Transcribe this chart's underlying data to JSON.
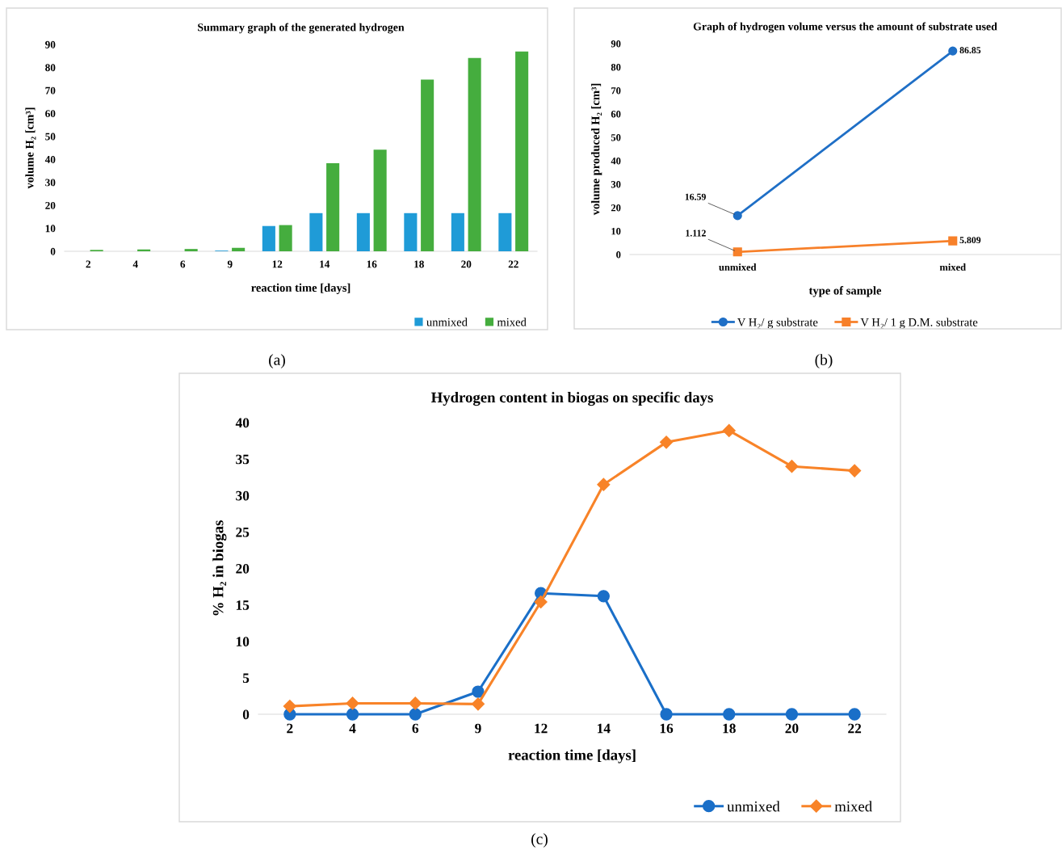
{
  "chart_data": [
    {
      "type": "bar",
      "title": "Summary graph of the generated hydrogen",
      "xlabel": "reaction time [days]",
      "ylabel": "volume H₂ [cm³]",
      "categories": [
        "2",
        "4",
        "6",
        "9",
        "12",
        "14",
        "16",
        "18",
        "20",
        "22"
      ],
      "series": [
        {
          "name": "unmixed",
          "color": "#1f9bd7",
          "values": [
            0,
            0,
            0,
            0.3,
            11,
            16.6,
            16.6,
            16.6,
            16.6,
            16.6
          ]
        },
        {
          "name": "mixed",
          "color": "#45ad3e",
          "values": [
            0.6,
            0.8,
            1.0,
            1.5,
            11.4,
            38.3,
            44.2,
            74.7,
            84.1,
            86.9
          ]
        }
      ],
      "ylim": [
        0,
        90
      ],
      "yticks": [
        0,
        10,
        20,
        30,
        40,
        50,
        60,
        70,
        80,
        90
      ],
      "grid": false,
      "legend": "bottom right",
      "annotations": [
        "(a)"
      ]
    },
    {
      "type": "line",
      "title": "Graph of hydrogen volume versus the amount of substrate used",
      "xlabel": "type of sample",
      "ylabel": "volume produced H₂ [cm³]",
      "categories": [
        "unmixed",
        "mixed"
      ],
      "series": [
        {
          "name": "V H₂/ g substrate",
          "color": "#1f6fc6",
          "marker": "circle",
          "values": [
            16.59,
            86.85
          ]
        },
        {
          "name": "V H₂/ 1 g D.M. substrate",
          "color": "#f7802a",
          "marker": "square",
          "values": [
            1.112,
            5.809
          ]
        }
      ],
      "data_labels": true,
      "ylim": [
        0,
        90
      ],
      "yticks": [
        0,
        10,
        20,
        30,
        40,
        50,
        60,
        70,
        80,
        90
      ],
      "grid": false,
      "legend": "bottom",
      "annotations": [
        "(b)"
      ]
    },
    {
      "type": "line",
      "title": "Hydrogen content in biogas on specific days",
      "xlabel": "reaction time [days]",
      "ylabel": "% H₂ in biogas",
      "categories": [
        "2",
        "4",
        "6",
        "9",
        "12",
        "14",
        "16",
        "18",
        "20",
        "22"
      ],
      "series": [
        {
          "name": "unmixed",
          "color": "#1a6fc8",
          "marker": "circle",
          "values": [
            0,
            0,
            0,
            3.1,
            16.6,
            16.2,
            0,
            0,
            0,
            0
          ]
        },
        {
          "name": "mixed",
          "color": "#f88328",
          "marker": "diamond",
          "values": [
            1.1,
            1.5,
            1.5,
            1.4,
            15.4,
            31.5,
            37.3,
            38.9,
            34.0,
            33.4
          ]
        }
      ],
      "ylim": [
        0,
        40
      ],
      "yticks": [
        0,
        5,
        10,
        15,
        20,
        25,
        30,
        35,
        40
      ],
      "grid": false,
      "legend": "bottom right",
      "annotations": [
        "(c)"
      ]
    }
  ]
}
